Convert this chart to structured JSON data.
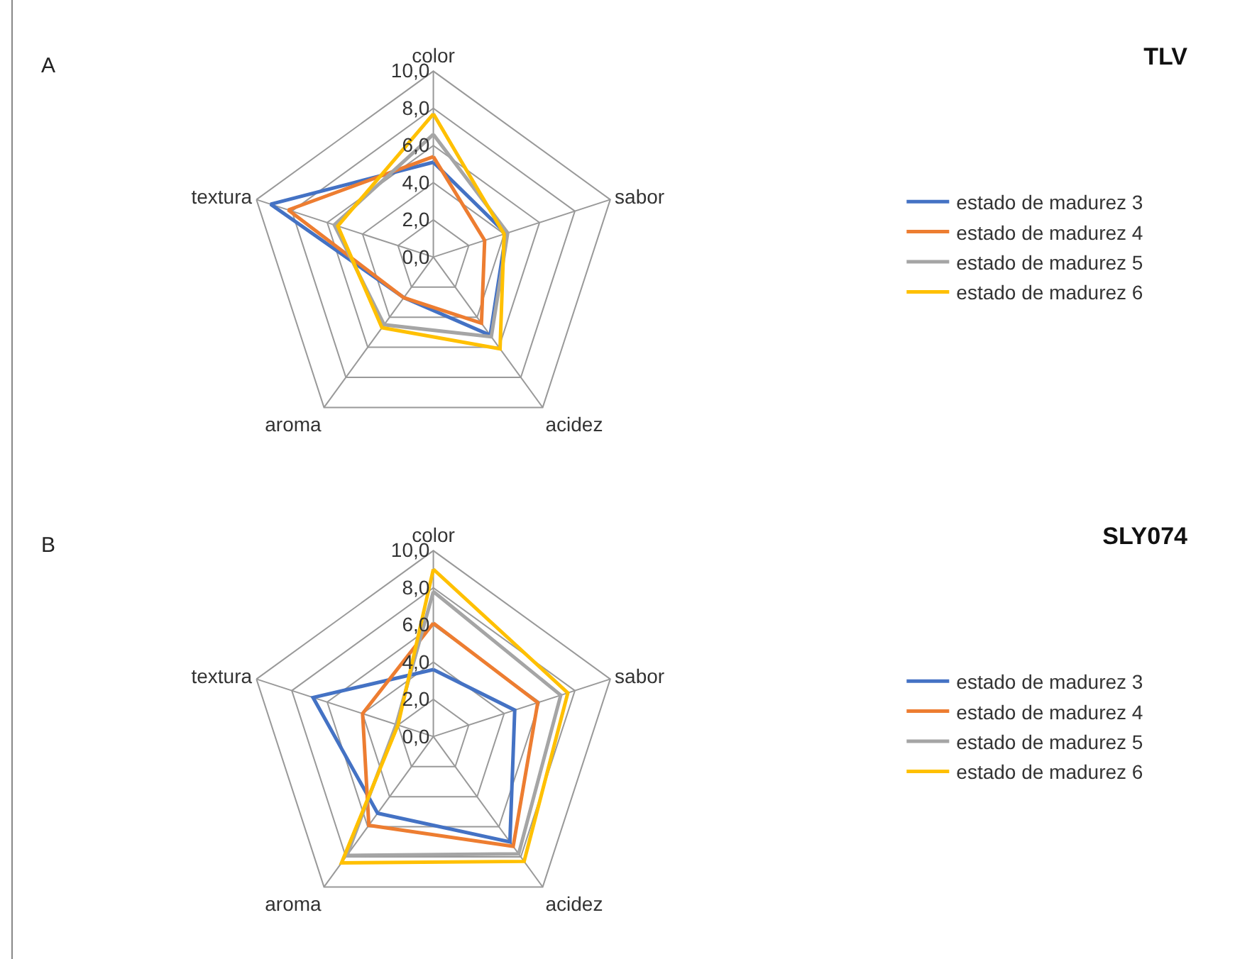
{
  "chart_data": [
    {
      "type": "radar",
      "title": "TLV",
      "annotations": [
        "A"
      ],
      "categories": [
        "color",
        "sabor",
        "acidez",
        "aroma",
        "textura"
      ],
      "ylim": [
        0,
        10
      ],
      "yticks": [
        {
          "value": 0,
          "label": "0,0"
        },
        {
          "value": 2,
          "label": "2,0"
        },
        {
          "value": 4,
          "label": "4,0"
        },
        {
          "value": 6,
          "label": "6,0"
        },
        {
          "value": 8,
          "label": "8,0"
        },
        {
          "value": 10,
          "label": "10,0"
        }
      ],
      "grid": true,
      "legend": "right",
      "line_style": "solid",
      "series": [
        {
          "name": "estado de madurez 3",
          "color": "#4472c4",
          "values": [
            5.1,
            4.1,
            5.2,
            2.7,
            9.2
          ]
        },
        {
          "name": "estado de madurez 4",
          "color": "#ed7d31",
          "values": [
            5.4,
            2.9,
            4.4,
            2.7,
            8.2
          ]
        },
        {
          "name": "estado de madurez 5",
          "color": "#a5a5a5",
          "values": [
            6.6,
            4.2,
            5.3,
            4.5,
            5.6
          ]
        },
        {
          "name": "estado de madurez 6",
          "color": "#ffc000",
          "values": [
            7.7,
            4.0,
            6.1,
            4.7,
            5.4
          ]
        }
      ]
    },
    {
      "type": "radar",
      "title": "SLY074",
      "annotations": [
        "B"
      ],
      "categories": [
        "color",
        "sabor",
        "acidez",
        "aroma",
        "textura"
      ],
      "ylim": [
        0,
        10
      ],
      "yticks": [
        {
          "value": 0,
          "label": "0,0"
        },
        {
          "value": 2,
          "label": "2,0"
        },
        {
          "value": 4,
          "label": "4,0"
        },
        {
          "value": 6,
          "label": "6,0"
        },
        {
          "value": 8,
          "label": "8,0"
        },
        {
          "value": 10,
          "label": "10,0"
        }
      ],
      "grid": true,
      "legend": "right",
      "line_style": "solid",
      "series": [
        {
          "name": "estado de madurez 3",
          "color": "#4472c4",
          "values": [
            3.6,
            4.6,
            7.0,
            5.1,
            6.8
          ]
        },
        {
          "name": "estado de madurez 4",
          "color": "#ed7d31",
          "values": [
            6.1,
            5.9,
            7.3,
            5.9,
            4.0
          ]
        },
        {
          "name": "estado de madurez 5",
          "color": "#a5a5a5",
          "values": [
            7.8,
            7.2,
            7.8,
            7.9,
            2.1
          ]
        },
        {
          "name": "estado de madurez 6",
          "color": "#ffc000",
          "values": [
            9.0,
            7.6,
            8.3,
            8.4,
            2.0
          ]
        }
      ]
    }
  ]
}
